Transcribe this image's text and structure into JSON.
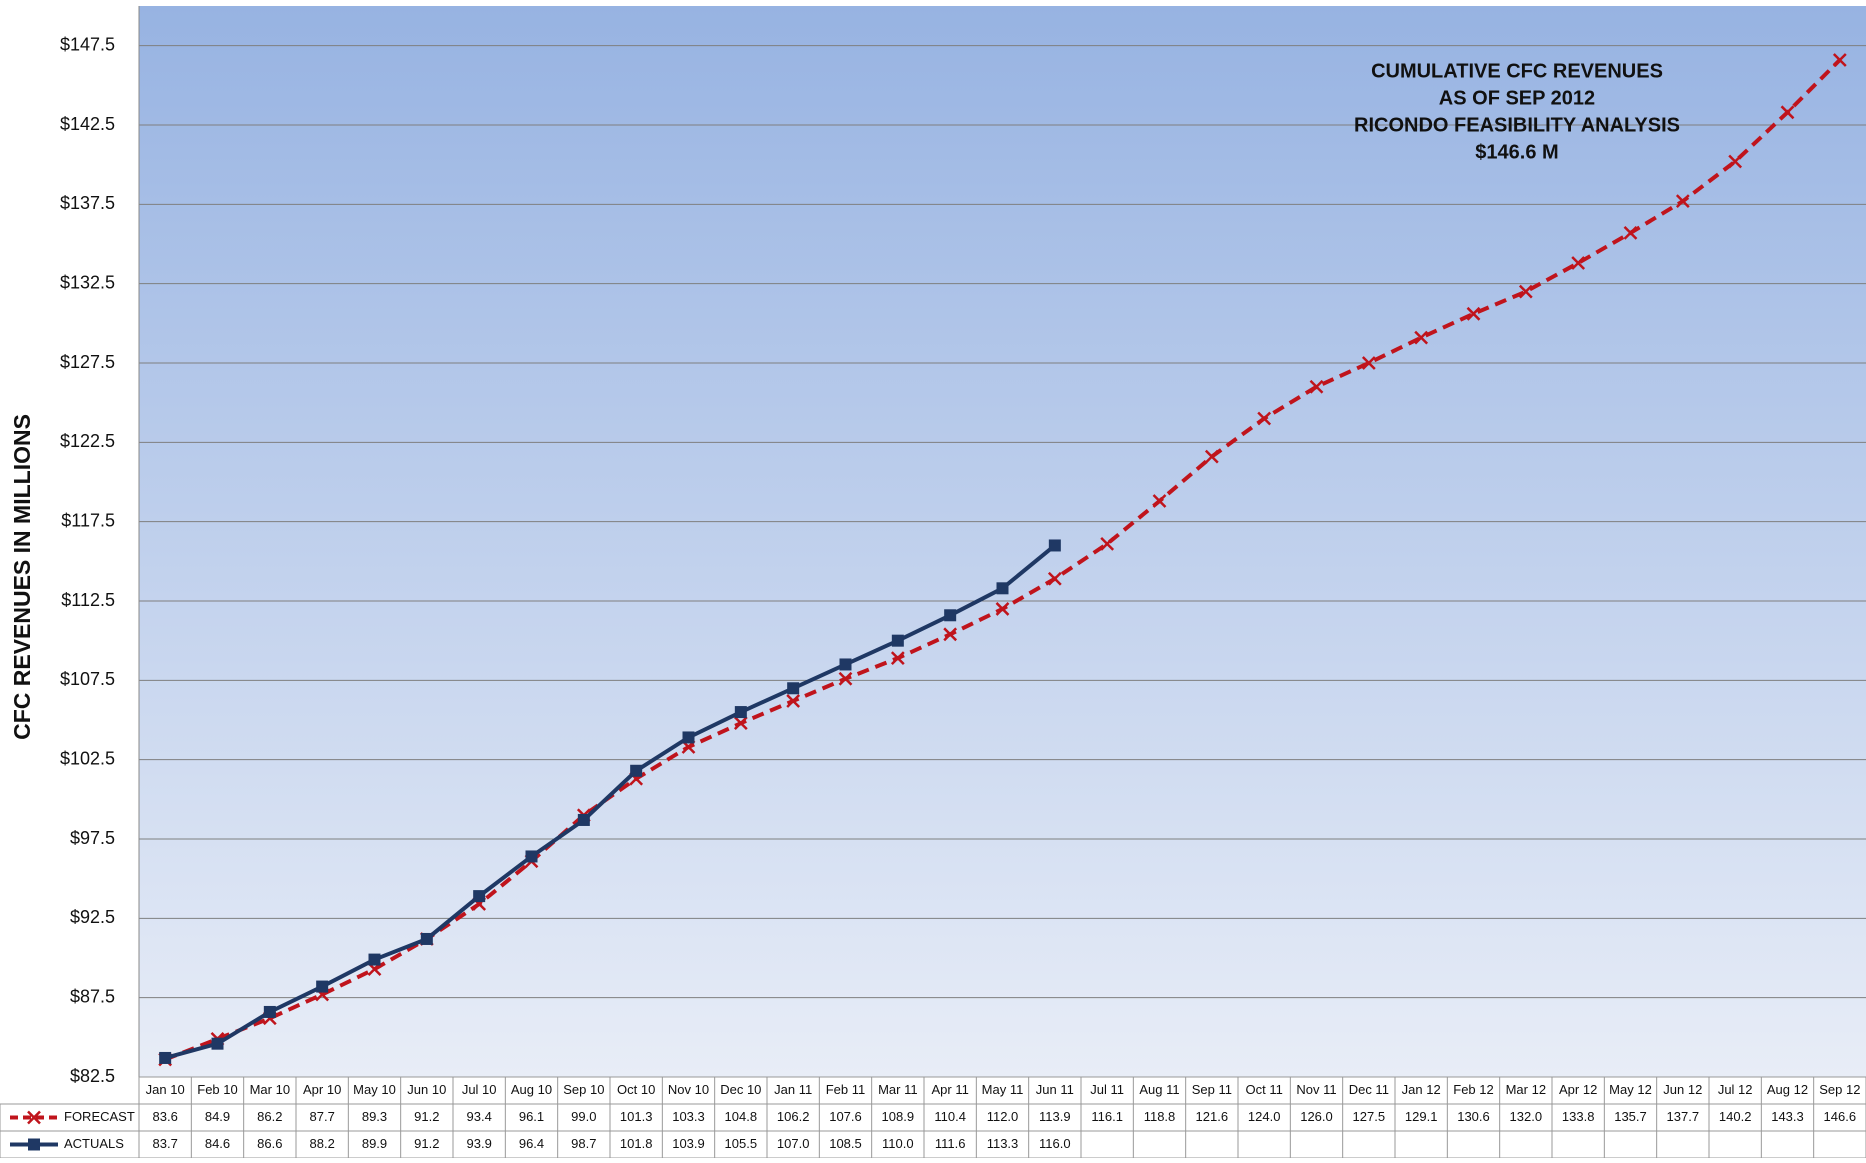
{
  "chart_data": {
    "type": "line",
    "annotation": [
      "CUMULATIVE CFC REVENUES",
      "AS OF SEP 2012",
      "RICONDO FEASIBILITY ANALYSIS",
      "$146.6 M"
    ],
    "y_label": "CFC REVENUES IN MILLIONS",
    "categories": [
      "Jan 10",
      "Feb 10",
      "Mar 10",
      "Apr 10",
      "May 10",
      "Jun 10",
      "Jul 10",
      "Aug 10",
      "Sep 10",
      "Oct 10",
      "Nov 10",
      "Dec 10",
      "Jan 11",
      "Feb 11",
      "Mar 11",
      "Apr 11",
      "May 11",
      "Jun 11",
      "Jul 11",
      "Aug 11",
      "Sep 11",
      "Oct 11",
      "Nov 11",
      "Dec 11",
      "Jan 12",
      "Feb 12",
      "Mar 12",
      "Apr 12",
      "May 12",
      "Jun 12",
      "Jul 12",
      "Aug 12",
      "Sep 12"
    ],
    "series": [
      {
        "name": "FORECAST",
        "color": "#c0141c",
        "dashed": true,
        "marker": "x",
        "values": [
          83.6,
          84.9,
          86.2,
          87.7,
          89.3,
          91.2,
          93.4,
          96.1,
          99.0,
          101.3,
          103.3,
          104.8,
          106.2,
          107.6,
          108.9,
          110.4,
          112.0,
          113.9,
          116.1,
          118.8,
          121.6,
          124.0,
          126.0,
          127.5,
          129.1,
          130.6,
          132.0,
          133.8,
          135.7,
          137.7,
          140.2,
          143.3,
          146.6
        ],
        "value_labels": [
          "83.6",
          "84.9",
          "86.2",
          "87.7",
          "89.3",
          "91.2",
          "93.4",
          "96.1",
          "99.0",
          "101.3",
          "103.3",
          "104.8",
          "106.2",
          "107.6",
          "108.9",
          "110.4",
          "112.0",
          "113.9",
          "116.1",
          "118.8",
          "121.6",
          "124.0",
          "126.0",
          "127.5",
          "129.1",
          "130.6",
          "132.0",
          "133.8",
          "135.7",
          "137.7",
          "140.2",
          "143.3",
          "146.6"
        ]
      },
      {
        "name": "ACTUALS",
        "color": "#1f3864",
        "dashed": false,
        "marker": "square",
        "values": [
          83.7,
          84.6,
          86.6,
          88.2,
          89.9,
          91.2,
          93.9,
          96.4,
          98.7,
          101.8,
          103.9,
          105.5,
          107.0,
          108.5,
          110.0,
          111.6,
          113.3,
          116.0,
          null,
          null,
          null,
          null,
          null,
          null,
          null,
          null,
          null,
          null,
          null,
          null,
          null,
          null,
          null
        ],
        "value_labels": [
          "83.7",
          "84.6",
          "86.6",
          "88.2",
          "89.9",
          "91.2",
          "93.9",
          "96.4",
          "98.7",
          "101.8",
          "103.9",
          "105.5",
          "107.0",
          "108.5",
          "110.0",
          "111.6",
          "113.3",
          "116.0",
          null,
          null,
          null,
          null,
          null,
          null,
          null,
          null,
          null,
          null,
          null,
          null,
          null,
          null,
          null
        ]
      }
    ],
    "ylim": [
      82.5,
      150
    ],
    "yticks": [
      {
        "value": 82.5,
        "label": "$82.5"
      },
      {
        "value": 87.5,
        "label": "$87.5"
      },
      {
        "value": 92.5,
        "label": "$92.5"
      },
      {
        "value": 97.5,
        "label": "$97.5"
      },
      {
        "value": 102.5,
        "label": "$102.5"
      },
      {
        "value": 107.5,
        "label": "$107.5"
      },
      {
        "value": 112.5,
        "label": "$112.5"
      },
      {
        "value": 117.5,
        "label": "$117.5"
      },
      {
        "value": 122.5,
        "label": "$122.5"
      },
      {
        "value": 127.5,
        "label": "$127.5"
      },
      {
        "value": 132.5,
        "label": "$132.5"
      },
      {
        "value": 137.5,
        "label": "$137.5"
      },
      {
        "value": 142.5,
        "label": "$142.5"
      },
      {
        "value": 147.5,
        "label": "$147.5"
      }
    ],
    "grid": true
  }
}
